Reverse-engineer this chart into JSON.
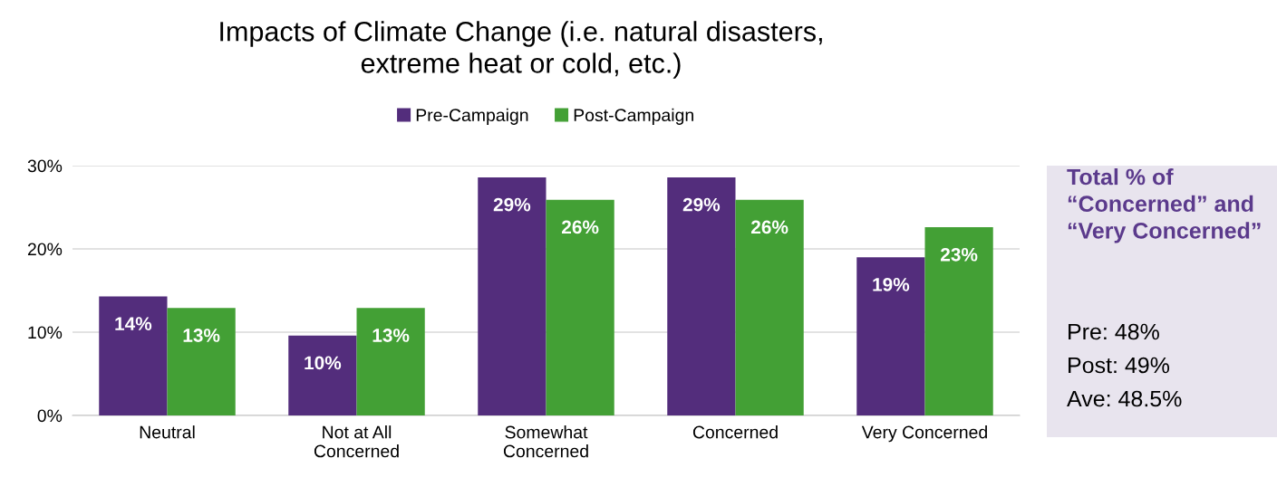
{
  "chart_data": {
    "type": "bar",
    "title": "Impacts of Climate Change (i.e. natural disasters,\nextreme heat or cold, etc.)",
    "categories": [
      "Neutral",
      "Not at All\nConcerned",
      "Somewhat\nConcerned",
      "Concerned",
      "Very Concerned"
    ],
    "series": [
      {
        "name": "Pre-Campaign",
        "color": "#532d7c",
        "values": [
          14.3,
          9.6,
          28.6,
          28.6,
          19.0
        ],
        "value_labels": [
          "14%",
          "10%",
          "29%",
          "29%",
          "19%"
        ]
      },
      {
        "name": "Post-Campaign",
        "color": "#43a035",
        "values": [
          12.9,
          12.9,
          25.9,
          25.9,
          22.6
        ],
        "value_labels": [
          "13%",
          "13%",
          "26%",
          "26%",
          "23%"
        ]
      }
    ],
    "ylim": [
      0,
      30
    ],
    "yticks": [
      {
        "value": 0,
        "label": "0%"
      },
      {
        "value": 10,
        "label": "10%"
      },
      {
        "value": 20,
        "label": "20%"
      },
      {
        "value": 30,
        "label": "30%"
      }
    ],
    "grid": "y",
    "legend": "top",
    "annotations": [
      "Total % of “Concerned” and “Very Concerned”",
      "Pre: 48%",
      "Post: 49%",
      "Ave: 48.5%"
    ]
  }
}
